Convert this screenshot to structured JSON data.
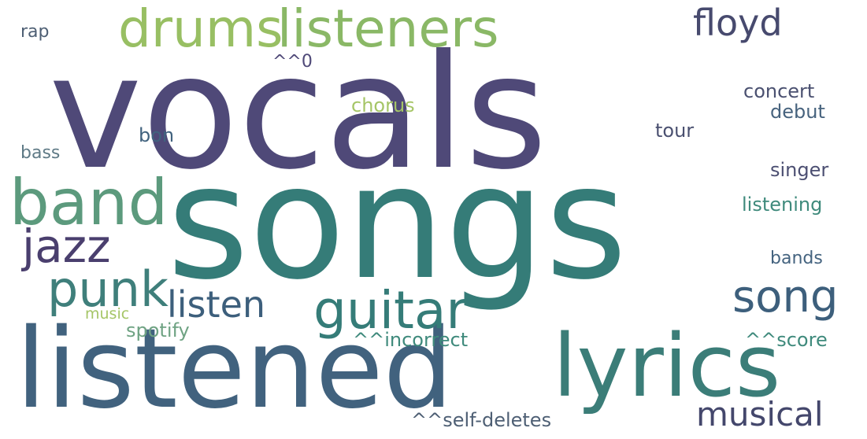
{
  "words": [
    {
      "id": "vocals",
      "text": "vocals",
      "color": "#4f4978"
    },
    {
      "id": "songs",
      "text": "songs",
      "color": "#357c78"
    },
    {
      "id": "listened",
      "text": "listened",
      "color": "#41627e"
    },
    {
      "id": "lyrics",
      "text": "lyrics",
      "color": "#3b7d78"
    },
    {
      "id": "band",
      "text": "band",
      "color": "#5c9a7d"
    },
    {
      "id": "listeners",
      "text": "listeners",
      "color": "#8ab866"
    },
    {
      "id": "drums",
      "text": "drums",
      "color": "#98bf63"
    },
    {
      "id": "punk",
      "text": "punk",
      "color": "#3f7f7b"
    },
    {
      "id": "guitar",
      "text": "guitar",
      "color": "#357c78"
    },
    {
      "id": "jazz",
      "text": "jazz",
      "color": "#4a3f6e"
    },
    {
      "id": "song",
      "text": "song",
      "color": "#3d5f7c"
    },
    {
      "id": "listen",
      "text": "listen",
      "color": "#3d5f7c"
    },
    {
      "id": "floyd",
      "text": "floyd",
      "color": "#474a6e"
    },
    {
      "id": "musical",
      "text": "musical",
      "color": "#44476c"
    },
    {
      "id": "concert",
      "text": "concert",
      "color": "#4a5070"
    },
    {
      "id": "debut",
      "text": "debut",
      "color": "#47637e"
    },
    {
      "id": "chorus",
      "text": "chorus",
      "color": "#a5c566"
    },
    {
      "id": "tour",
      "text": "tour",
      "color": "#4a5070"
    },
    {
      "id": "bon",
      "text": "bon",
      "color": "#41627e"
    },
    {
      "id": "singer",
      "text": "singer",
      "color": "#4c4f72"
    },
    {
      "id": "listening",
      "text": "listening",
      "color": "#3f8a7c"
    },
    {
      "id": "bands",
      "text": "bands",
      "color": "#44637f"
    },
    {
      "id": "bass",
      "text": "bass",
      "color": "#5f7a86"
    },
    {
      "id": "rap",
      "text": "rap",
      "color": "#4e5f74"
    },
    {
      "id": "caret0",
      "text": "^^0",
      "color": "#4f4978"
    },
    {
      "id": "music",
      "text": "music",
      "color": "#a5c566"
    },
    {
      "id": "spotify",
      "text": "spotify",
      "color": "#6fa383"
    },
    {
      "id": "incorrect",
      "text": "^^incorrect",
      "color": "#3f8a7c"
    },
    {
      "id": "score",
      "text": "^^score",
      "color": "#3f8a7c"
    },
    {
      "id": "selfdeletes",
      "text": "^^self-deletes",
      "color": "#4e5f74"
    }
  ]
}
